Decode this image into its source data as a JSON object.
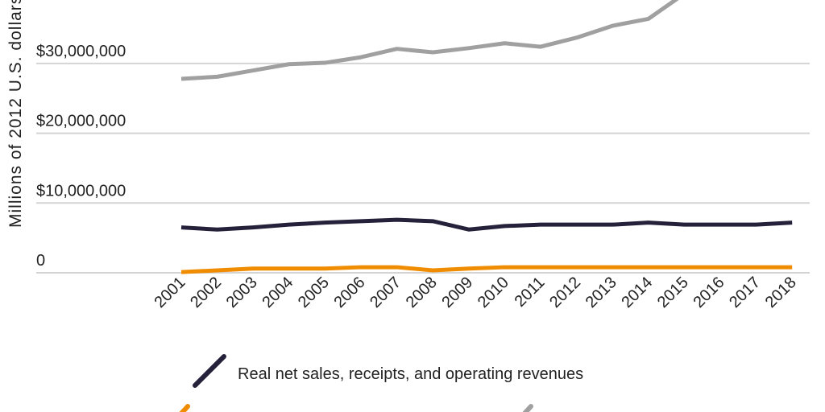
{
  "chart_data": {
    "type": "line",
    "title": "",
    "xlabel": "",
    "ylabel": "Millions of 2012 U.S. dollars",
    "ylim": [
      0,
      39
    ],
    "y_unit": "millions of dollars",
    "yticks": [
      0,
      10000000,
      20000000,
      30000000
    ],
    "ytick_labels": [
      "0",
      "$10,000,000",
      "$20,000,000",
      "$30,000,000"
    ],
    "grid": "horizontal",
    "x": [
      "2001",
      "2002",
      "2003",
      "2004",
      "2005",
      "2006",
      "2007",
      "2008",
      "2009",
      "2010",
      "2011",
      "2012",
      "2013",
      "2014",
      "2015",
      "2016",
      "2017",
      "2018"
    ],
    "series": [
      {
        "name": "",
        "color": "#a0a0a0",
        "values": [
          27800000,
          28100000,
          29000000,
          29900000,
          30100000,
          30900000,
          32100000,
          31600000,
          32200000,
          32900000,
          32400000,
          33700000,
          35400000,
          36400000,
          40000000,
          null,
          null,
          null
        ]
      },
      {
        "name": "Real net sales, receipts, and operating revenues",
        "color": "#25213b",
        "values": [
          6500000,
          6200000,
          6500000,
          6900000,
          7200000,
          7400000,
          7600000,
          7400000,
          6200000,
          6700000,
          6900000,
          6900000,
          6900000,
          7200000,
          6900000,
          6900000,
          6900000,
          7200000
        ]
      },
      {
        "name": "",
        "color": "#f08c00",
        "values": [
          100000,
          350000,
          600000,
          600000,
          600000,
          800000,
          800000,
          350000,
          600000,
          800000,
          800000,
          800000,
          800000,
          800000,
          800000,
          800000,
          800000,
          800000
        ]
      }
    ],
    "legend_placement": "bottom"
  }
}
